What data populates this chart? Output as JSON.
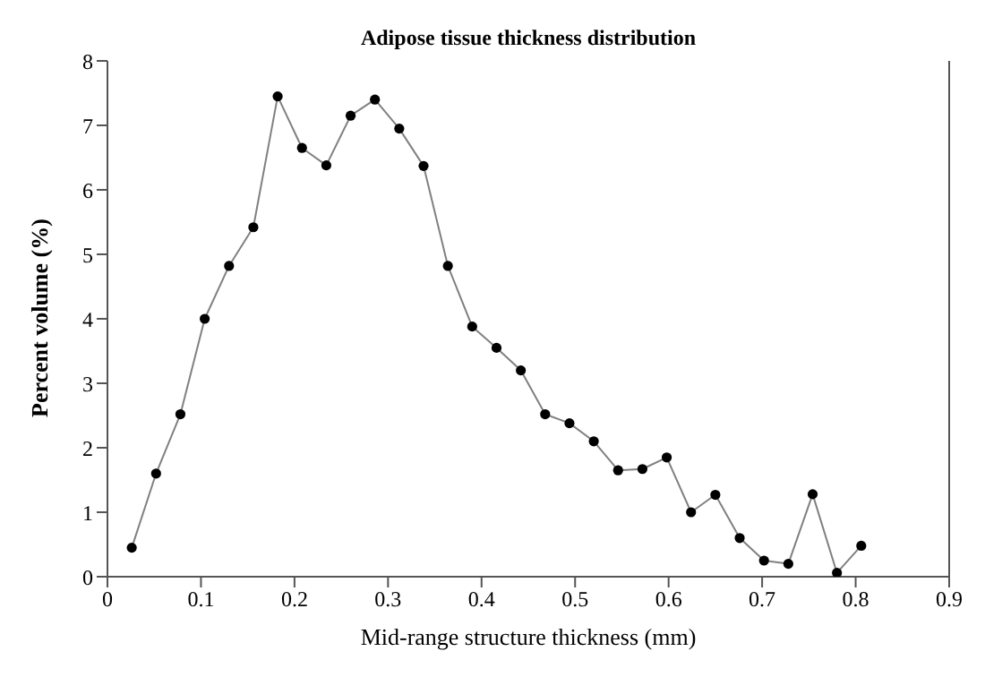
{
  "chart_data": {
    "type": "line",
    "title": "Adipose tissue thickness distribution",
    "xlabel": "Mid-range structure thickness (mm)",
    "ylabel": "Percent volume (%)",
    "x": [
      0.026,
      0.052,
      0.078,
      0.104,
      0.13,
      0.156,
      0.182,
      0.208,
      0.234,
      0.26,
      0.286,
      0.312,
      0.338,
      0.364,
      0.39,
      0.416,
      0.442,
      0.468,
      0.494,
      0.52,
      0.546,
      0.572,
      0.598,
      0.624,
      0.65,
      0.676,
      0.702,
      0.728,
      0.754,
      0.78,
      0.806
    ],
    "series": [
      {
        "color": "#808080",
        "values": [
          0.45,
          1.6,
          2.52,
          4.0,
          4.82,
          5.42,
          7.45,
          6.65,
          6.38,
          7.15,
          7.4,
          6.95,
          6.37,
          4.82,
          3.88,
          3.55,
          3.2,
          2.52,
          2.38,
          2.1,
          1.65,
          1.67,
          1.85,
          1.0,
          1.27,
          0.6,
          0.25,
          0.2,
          1.28,
          0.06,
          0.48
        ]
      }
    ],
    "xlim": [
      0,
      0.9
    ],
    "xticks": [
      0,
      0.1,
      0.2,
      0.3,
      0.4,
      0.5,
      0.6,
      0.7,
      0.8,
      0.9
    ],
    "ylim": [
      0,
      8
    ],
    "yticks": [
      0,
      1,
      2,
      3,
      4,
      5,
      6,
      7,
      8
    ],
    "grid": false,
    "legend": false,
    "marker": "circle",
    "line_style": "solid"
  }
}
